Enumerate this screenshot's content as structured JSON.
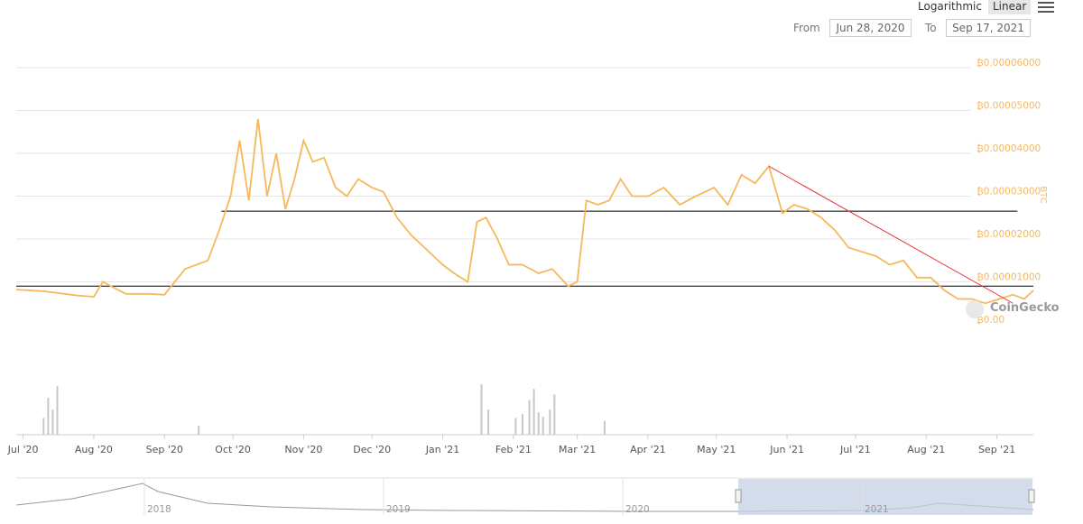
{
  "controls": {
    "scale_log_label": "Logarithmic",
    "scale_linear_label": "Linear",
    "from_label": "From",
    "from_value": "Jun 28, 2020",
    "to_label": "To",
    "to_value": "Sep 17, 2021"
  },
  "brand": "CoinGecko",
  "chart_data": {
    "type": "line",
    "ylabel": "BTC",
    "ylim": [
      0,
      6e-05
    ],
    "y_ticks": [
      "₿0.00006000",
      "₿0.00005000",
      "₿0.00004000",
      "₿0.00003000",
      "₿0.00002000",
      "₿0.00001000",
      "₿0.00"
    ],
    "y_tick_values": [
      6e-05,
      5e-05,
      4e-05,
      3e-05,
      2e-05,
      1e-05,
      0
    ],
    "x_ticks": [
      "Jul '20",
      "Aug '20",
      "Sep '20",
      "Oct '20",
      "Nov '20",
      "Dec '20",
      "Jan '21",
      "Feb '21",
      "Mar '21",
      "Apr '21",
      "May '21",
      "Jun '21",
      "Jul '21",
      "Aug '21",
      "Sep '21"
    ],
    "x_tick_dates": [
      "2020-07-01",
      "2020-08-01",
      "2020-09-01",
      "2020-10-01",
      "2020-11-01",
      "2020-12-01",
      "2021-01-01",
      "2021-02-01",
      "2021-03-01",
      "2021-04-01",
      "2021-05-01",
      "2021-06-01",
      "2021-07-01",
      "2021-08-01",
      "2021-09-01"
    ],
    "x_range": [
      "2020-06-28",
      "2021-09-17"
    ],
    "grid": true,
    "line_color": "#f7b85b",
    "series": [
      {
        "x": [
          "2020-06-28",
          "2020-07-10",
          "2020-07-25",
          "2020-08-01",
          "2020-08-05",
          "2020-08-15",
          "2020-08-25",
          "2020-09-01",
          "2020-09-10",
          "2020-09-20",
          "2020-09-25",
          "2020-09-30",
          "2020-10-04",
          "2020-10-08",
          "2020-10-12",
          "2020-10-16",
          "2020-10-20",
          "2020-10-24",
          "2020-10-28",
          "2020-11-01",
          "2020-11-05",
          "2020-11-10",
          "2020-11-15",
          "2020-11-20",
          "2020-11-25",
          "2020-12-01",
          "2020-12-06",
          "2020-12-12",
          "2020-12-18",
          "2020-12-24",
          "2021-01-01",
          "2021-01-06",
          "2021-01-12",
          "2021-01-16",
          "2021-01-20",
          "2021-01-25",
          "2021-01-30",
          "2021-02-05",
          "2021-02-12",
          "2021-02-18",
          "2021-02-25",
          "2021-03-01",
          "2021-03-05",
          "2021-03-10",
          "2021-03-15",
          "2021-03-20",
          "2021-03-25",
          "2021-04-01",
          "2021-04-08",
          "2021-04-15",
          "2021-04-22",
          "2021-04-30",
          "2021-05-06",
          "2021-05-12",
          "2021-05-18",
          "2021-05-24",
          "2021-05-30",
          "2021-06-04",
          "2021-06-10",
          "2021-06-16",
          "2021-06-22",
          "2021-06-28",
          "2021-07-04",
          "2021-07-10",
          "2021-07-16",
          "2021-07-22",
          "2021-07-28",
          "2021-08-03",
          "2021-08-09",
          "2021-08-15",
          "2021-08-21",
          "2021-08-27",
          "2021-09-02",
          "2021-09-08",
          "2021-09-13",
          "2021-09-17"
        ],
        "y": [
          8.2e-06,
          7.8e-06,
          6.8e-06,
          6.5e-06,
          1e-05,
          7.2e-06,
          7.2e-06,
          7e-06,
          1.3e-05,
          1.5e-05,
          2.2e-05,
          3e-05,
          4.3e-05,
          2.9e-05,
          4.8e-05,
          3e-05,
          4e-05,
          2.7e-05,
          3.4e-05,
          4.3e-05,
          3.8e-05,
          3.9e-05,
          3.2e-05,
          3e-05,
          3.4e-05,
          3.2e-05,
          3.1e-05,
          2.5e-05,
          2.1e-05,
          1.8e-05,
          1.4e-05,
          1.2e-05,
          1e-05,
          2.4e-05,
          2.5e-05,
          2e-05,
          1.4e-05,
          1.4e-05,
          1.2e-05,
          1.3e-05,
          9e-06,
          1e-05,
          2.9e-05,
          2.8e-05,
          2.9e-05,
          3.4e-05,
          3e-05,
          3e-05,
          3.2e-05,
          2.8e-05,
          3e-05,
          3.2e-05,
          2.8e-05,
          3.5e-05,
          3.3e-05,
          3.7e-05,
          2.6e-05,
          2.8e-05,
          2.7e-05,
          2.5e-05,
          2.2e-05,
          1.8e-05,
          1.7e-05,
          1.6e-05,
          1.4e-05,
          1.5e-05,
          1.1e-05,
          1.1e-05,
          8e-06,
          6e-06,
          6e-06,
          5e-06,
          6e-06,
          7e-06,
          6e-06,
          8e-06
        ]
      }
    ],
    "annotations": [
      {
        "type": "hline",
        "value": 2.65e-05,
        "x_start": "2020-09-26",
        "x_end": "2021-09-10",
        "color": "#000000"
      },
      {
        "type": "hline",
        "value": 9e-06,
        "x_start": "2020-06-28",
        "x_end": "2021-09-17",
        "color": "#000000"
      },
      {
        "type": "trendline",
        "from": [
          "2021-05-24",
          3.7e-05
        ],
        "to": [
          "2021-09-08",
          5e-06
        ],
        "color": "#e8333a"
      }
    ],
    "volume": {
      "unit_max": 1,
      "x": [
        "2020-07-10",
        "2020-07-12",
        "2020-07-14",
        "2020-07-16",
        "2020-09-16",
        "2021-01-18",
        "2021-01-21",
        "2021-02-02",
        "2021-02-05",
        "2021-02-08",
        "2021-02-10",
        "2021-02-12",
        "2021-02-14",
        "2021-02-17",
        "2021-02-19",
        "2021-03-13"
      ],
      "values": [
        0.3,
        0.66,
        0.45,
        0.87,
        0.16,
        0.9,
        0.45,
        0.3,
        0.37,
        0.62,
        0.82,
        0.4,
        0.32,
        0.45,
        0.72,
        0.25
      ]
    },
    "navigator": {
      "years": [
        "2018",
        "2019",
        "2020",
        "2021"
      ],
      "selected_range": [
        "2020-06-28",
        "2021-09-17"
      ]
    }
  }
}
